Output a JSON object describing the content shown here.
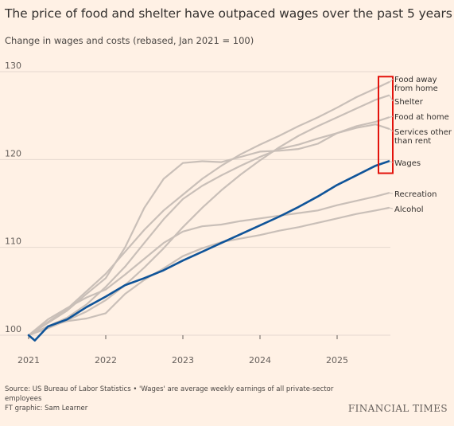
{
  "header": {
    "title": "The price of food and shelter have outpaced wages over the past 5 years",
    "subtitle": "Change in wages and costs (rebased, Jan 2021 = 100)"
  },
  "footer": {
    "source": "Source: US Bureau of Labor Statistics • 'Wages' are average weekly earnings of all private-sector employees",
    "credit": "FT graphic: Sam Learner",
    "brand": "FINANCIAL TIMES"
  },
  "colors": {
    "background": "#fff1e5",
    "grid": "#e4d8cf",
    "context_line": "#c9bfb8",
    "highlight_line": "#0f5499",
    "highlight_box": "#e3120b",
    "text": "#33302e"
  },
  "chart_data": {
    "type": "line",
    "title": "The price of food and shelter have outpaced wages over the past 5 years",
    "ylabel": "Change in wages and costs (rebased, Jan 2021 = 100)",
    "xlabel": "",
    "x_ticks": [
      "2021",
      "2022",
      "2023",
      "2024",
      "2025"
    ],
    "y_ticks": [
      100,
      110,
      120,
      130
    ],
    "xlim": [
      2021.0,
      2025.67
    ],
    "ylim": [
      100,
      130
    ],
    "grid": true,
    "legend": "direct labels at right end of lines",
    "highlight_box_labels": [
      "Food away from home",
      "Shelter",
      "Food at home",
      "Services other than rent",
      "Wages"
    ],
    "series": [
      {
        "name": "Food away from home",
        "label_lines": [
          "Food away",
          "from home"
        ],
        "highlight": false,
        "points": [
          [
            2021.0,
            100
          ],
          [
            2021.25,
            101.5
          ],
          [
            2021.5,
            103
          ],
          [
            2021.75,
            105
          ],
          [
            2022.0,
            107
          ],
          [
            2022.25,
            109.5
          ],
          [
            2022.5,
            112
          ],
          [
            2022.75,
            114.2
          ],
          [
            2023.0,
            116
          ],
          [
            2023.25,
            117.8
          ],
          [
            2023.5,
            119.3
          ],
          [
            2023.75,
            120.6
          ],
          [
            2024.0,
            121.7
          ],
          [
            2024.25,
            122.7
          ],
          [
            2024.5,
            123.8
          ],
          [
            2024.75,
            124.8
          ],
          [
            2025.0,
            125.9
          ],
          [
            2025.25,
            127.1
          ],
          [
            2025.5,
            128.1
          ],
          [
            2025.67,
            128.8
          ]
        ]
      },
      {
        "name": "Shelter",
        "label_lines": [
          "Shelter"
        ],
        "highlight": false,
        "points": [
          [
            2021.0,
            100
          ],
          [
            2021.25,
            100.8
          ],
          [
            2021.5,
            101.7
          ],
          [
            2021.75,
            102.7
          ],
          [
            2022.0,
            104
          ],
          [
            2022.25,
            105.7
          ],
          [
            2022.5,
            107.7
          ],
          [
            2022.75,
            109.9
          ],
          [
            2023.0,
            112.3
          ],
          [
            2023.25,
            114.5
          ],
          [
            2023.5,
            116.5
          ],
          [
            2023.75,
            118.3
          ],
          [
            2024.0,
            119.9
          ],
          [
            2024.25,
            121.4
          ],
          [
            2024.5,
            122.7
          ],
          [
            2024.75,
            123.8
          ],
          [
            2025.0,
            124.8
          ],
          [
            2025.25,
            125.8
          ],
          [
            2025.5,
            126.8
          ],
          [
            2025.67,
            127.3
          ]
        ]
      },
      {
        "name": "Food at home",
        "label_lines": [
          "Food at home"
        ],
        "highlight": false,
        "points": [
          [
            2021.0,
            100
          ],
          [
            2021.25,
            101.4
          ],
          [
            2021.5,
            102.8
          ],
          [
            2021.75,
            104.7
          ],
          [
            2022.0,
            106.5
          ],
          [
            2022.25,
            110
          ],
          [
            2022.5,
            114.5
          ],
          [
            2022.75,
            117.8
          ],
          [
            2023.0,
            119.6
          ],
          [
            2023.25,
            119.8
          ],
          [
            2023.5,
            119.7
          ],
          [
            2023.75,
            120.3
          ],
          [
            2024.0,
            120.9
          ],
          [
            2024.25,
            121
          ],
          [
            2024.5,
            121.2
          ],
          [
            2024.75,
            121.8
          ],
          [
            2025.0,
            123
          ],
          [
            2025.25,
            123.8
          ],
          [
            2025.5,
            124.3
          ],
          [
            2025.67,
            124.8
          ]
        ]
      },
      {
        "name": "Services other than rent",
        "label_lines": [
          "Services other",
          "than rent"
        ],
        "highlight": false,
        "points": [
          [
            2021.0,
            100
          ],
          [
            2021.25,
            101
          ],
          [
            2021.5,
            102
          ],
          [
            2021.75,
            103.5
          ],
          [
            2022.0,
            105.5
          ],
          [
            2022.25,
            107.8
          ],
          [
            2022.5,
            110.5
          ],
          [
            2022.75,
            113.2
          ],
          [
            2023.0,
            115.5
          ],
          [
            2023.25,
            117
          ],
          [
            2023.5,
            118.2
          ],
          [
            2023.75,
            119.3
          ],
          [
            2024.0,
            120.3
          ],
          [
            2024.25,
            121.2
          ],
          [
            2024.5,
            121.7
          ],
          [
            2024.75,
            122.4
          ],
          [
            2025.0,
            123
          ],
          [
            2025.25,
            123.6
          ],
          [
            2025.5,
            124
          ],
          [
            2025.67,
            123.5
          ]
        ]
      },
      {
        "name": "Wages",
        "label_lines": [
          "Wages"
        ],
        "highlight": true,
        "points": [
          [
            2021.0,
            100
          ],
          [
            2021.08,
            99.4
          ],
          [
            2021.25,
            101
          ],
          [
            2021.5,
            101.8
          ],
          [
            2021.75,
            103.2
          ],
          [
            2022.0,
            104.4
          ],
          [
            2022.25,
            105.7
          ],
          [
            2022.5,
            106.5
          ],
          [
            2022.75,
            107.4
          ],
          [
            2023.0,
            108.5
          ],
          [
            2023.25,
            109.5
          ],
          [
            2023.5,
            110.5
          ],
          [
            2023.75,
            111.5
          ],
          [
            2024.0,
            112.5
          ],
          [
            2024.25,
            113.5
          ],
          [
            2024.5,
            114.6
          ],
          [
            2024.75,
            115.8
          ],
          [
            2025.0,
            117.1
          ],
          [
            2025.25,
            118.2
          ],
          [
            2025.5,
            119.3
          ],
          [
            2025.67,
            119.8
          ]
        ]
      },
      {
        "name": "Recreation",
        "label_lines": [
          "Recreation"
        ],
        "highlight": false,
        "points": [
          [
            2021.0,
            100
          ],
          [
            2021.25,
            101.8
          ],
          [
            2021.5,
            103.1
          ],
          [
            2021.75,
            104.3
          ],
          [
            2022.0,
            105.2
          ],
          [
            2022.25,
            106.9
          ],
          [
            2022.5,
            108.7
          ],
          [
            2022.75,
            110.5
          ],
          [
            2023.0,
            111.8
          ],
          [
            2023.25,
            112.4
          ],
          [
            2023.5,
            112.6
          ],
          [
            2023.75,
            113
          ],
          [
            2024.0,
            113.3
          ],
          [
            2024.25,
            113.6
          ],
          [
            2024.5,
            113.9
          ],
          [
            2024.75,
            114.2
          ],
          [
            2025.0,
            114.8
          ],
          [
            2025.25,
            115.3
          ],
          [
            2025.5,
            115.8
          ],
          [
            2025.67,
            116.2
          ]
        ]
      },
      {
        "name": "Alcohol",
        "label_lines": [
          "Alcohol"
        ],
        "highlight": false,
        "points": [
          [
            2021.0,
            100
          ],
          [
            2021.25,
            101
          ],
          [
            2021.5,
            101.6
          ],
          [
            2021.75,
            101.9
          ],
          [
            2022.0,
            102.5
          ],
          [
            2022.25,
            104.7
          ],
          [
            2022.5,
            106.3
          ],
          [
            2022.75,
            107.6
          ],
          [
            2023.0,
            109
          ],
          [
            2023.25,
            109.9
          ],
          [
            2023.5,
            110.6
          ],
          [
            2023.75,
            111
          ],
          [
            2024.0,
            111.4
          ],
          [
            2024.25,
            111.9
          ],
          [
            2024.5,
            112.3
          ],
          [
            2024.75,
            112.8
          ],
          [
            2025.0,
            113.3
          ],
          [
            2025.25,
            113.8
          ],
          [
            2025.5,
            114.2
          ],
          [
            2025.67,
            114.5
          ]
        ]
      }
    ]
  }
}
